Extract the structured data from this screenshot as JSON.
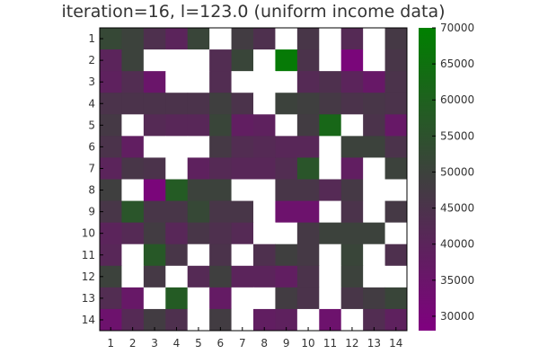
{
  "chart_data": {
    "type": "heatmap",
    "title": "iteration=16, l=123.0 (uniform income data)",
    "xlabel": "",
    "ylabel": "",
    "x_categories": [
      "1",
      "2",
      "3",
      "4",
      "5",
      "6",
      "7",
      "8",
      "9",
      "10",
      "11",
      "12",
      "13",
      "14"
    ],
    "y_categories": [
      "1",
      "2",
      "3",
      "4",
      "5",
      "6",
      "7",
      "8",
      "9",
      "10",
      "11",
      "12",
      "13",
      "14"
    ],
    "colorbar": {
      "min": 28000,
      "max": 70000,
      "ticks": [
        "30000",
        "35000",
        "40000",
        "45000",
        "50000",
        "55000",
        "60000",
        "65000",
        "70000"
      ],
      "tick_values": [
        30000,
        35000,
        40000,
        45000,
        50000,
        55000,
        60000,
        65000,
        70000
      ],
      "colormap": [
        "#800080",
        "#3f3f3f",
        "#008000"
      ],
      "colormap_positions": [
        0,
        0.5,
        1
      ]
    },
    "empty_cell_color": "#ffffff",
    "grid": false,
    "values": [
      [
        52000,
        50000,
        44000,
        40000,
        51000,
        null,
        48000,
        44000,
        null,
        46000,
        null,
        42000,
        null,
        47000
      ],
      [
        40000,
        50000,
        null,
        null,
        null,
        43000,
        51000,
        null,
        68000,
        45000,
        null,
        30000,
        null,
        46000
      ],
      [
        39000,
        43000,
        35000,
        null,
        null,
        43000,
        null,
        null,
        null,
        42000,
        44000,
        40000,
        36000,
        45000
      ],
      [
        45000,
        45000,
        45000,
        45000,
        45000,
        49000,
        45000,
        null,
        50000,
        49000,
        47000,
        45000,
        46000,
        45000
      ],
      [
        47000,
        null,
        42000,
        41000,
        41000,
        51000,
        38000,
        39000,
        null,
        48000,
        62000,
        null,
        45000,
        36000
      ],
      [
        45000,
        38000,
        null,
        null,
        null,
        47000,
        43000,
        42000,
        41000,
        41000,
        null,
        50000,
        50000,
        45000
      ],
      [
        40000,
        46000,
        45000,
        null,
        39000,
        42000,
        41000,
        41000,
        43000,
        56000,
        null,
        38000,
        null,
        50000
      ],
      [
        49000,
        null,
        30000,
        58000,
        50000,
        50000,
        null,
        null,
        46000,
        46000,
        42000,
        47000,
        null,
        null
      ],
      [
        46000,
        56000,
        46000,
        46000,
        52000,
        46000,
        46000,
        null,
        34000,
        34000,
        null,
        45000,
        null,
        47000
      ],
      [
        40000,
        42000,
        48000,
        41000,
        46000,
        44000,
        42000,
        null,
        null,
        47000,
        50000,
        50000,
        50000,
        null
      ],
      [
        41000,
        null,
        57000,
        46000,
        null,
        45000,
        null,
        44000,
        49000,
        47000,
        null,
        51000,
        null,
        44000
      ],
      [
        50000,
        null,
        47000,
        null,
        42000,
        49000,
        40000,
        40000,
        38000,
        45000,
        null,
        50000,
        null,
        null
      ],
      [
        43000,
        36000,
        null,
        58000,
        null,
        37000,
        null,
        null,
        48000,
        45000,
        null,
        46000,
        48000,
        51000
      ],
      [
        34000,
        42000,
        48000,
        44000,
        null,
        48000,
        null,
        38000,
        39000,
        null,
        34000,
        null,
        43000,
        39000
      ]
    ]
  }
}
